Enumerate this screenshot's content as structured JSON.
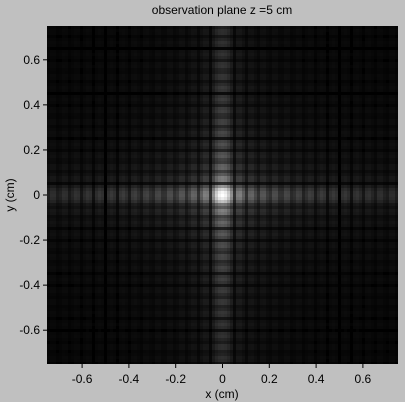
{
  "chart_data": {
    "type": "heatmap",
    "title": "observation plane z =5 cm",
    "xlabel": "x (cm)",
    "ylabel": "y (cm)",
    "xlim": [
      -0.75,
      0.75
    ],
    "ylim": [
      -0.75,
      0.75
    ],
    "xticks": [
      -0.6,
      -0.4,
      -0.2,
      0,
      0.2,
      0.4,
      0.6
    ],
    "yticks": [
      -0.6,
      -0.4,
      -0.2,
      0,
      0.2,
      0.4,
      0.6
    ],
    "xtick_labels": [
      "-0.6",
      "-0.4",
      "-0.2",
      "0",
      "0.2",
      "0.4",
      "0.6"
    ],
    "ytick_labels": [
      "-0.6",
      "-0.4",
      "-0.2",
      "0",
      "0.2",
      "0.4",
      "0.6"
    ],
    "colormap": "gray",
    "pattern": "Fraunhofer diffraction of a square aperture (sinc^2 in x and y)",
    "central_peak": [
      0,
      0
    ],
    "fringe_period_cm": 0.05,
    "grid": false
  },
  "colors": {
    "figure_background": "#c0c0c0",
    "plot_background": "#000000",
    "text": "#000000"
  }
}
